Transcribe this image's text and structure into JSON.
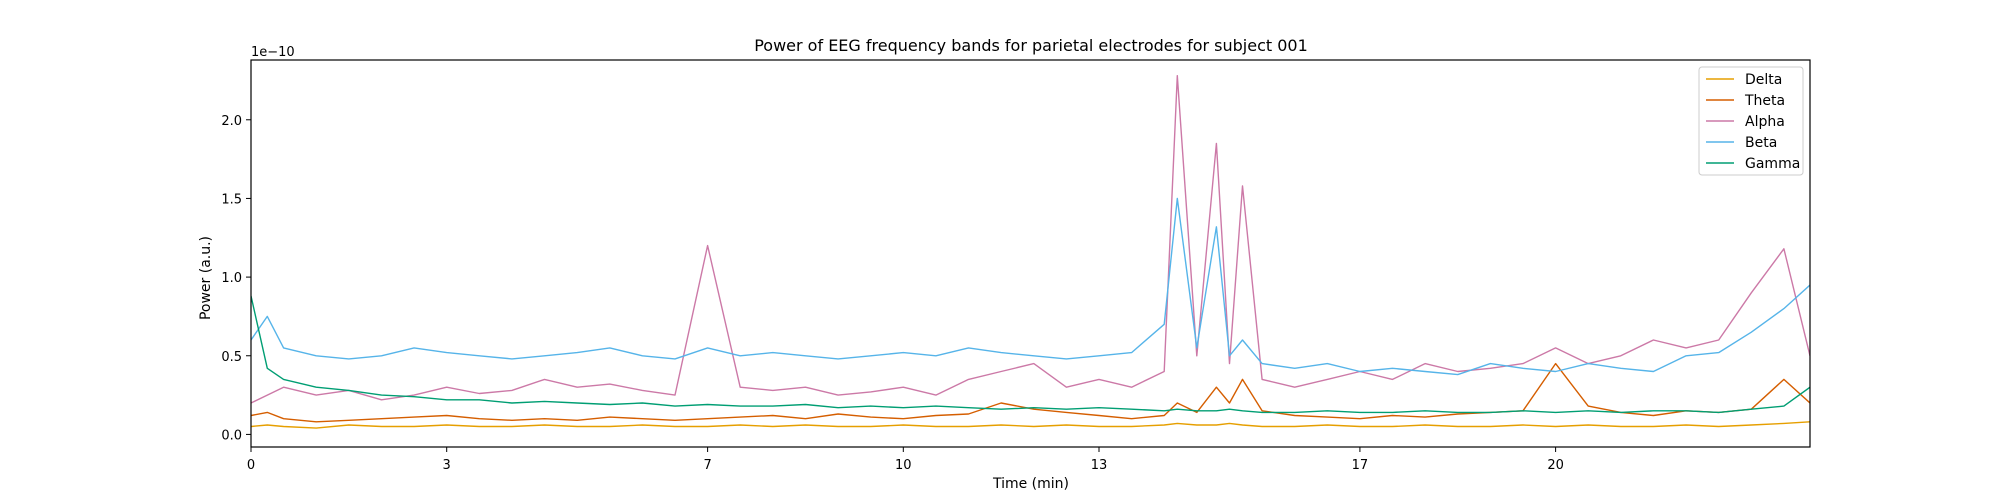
{
  "chart_data": {
    "type": "line",
    "title": "Power of EEG frequency bands for parietal electrodes for subject 001",
    "xlabel": "Time (min)",
    "ylabel": "Power (a.u.)",
    "y_offset_text": "1e−10",
    "y_scale_factor": 1e-10,
    "xlim": [
      0,
      23.9
    ],
    "ylim": [
      -0.08,
      2.38
    ],
    "xticks": [
      0,
      3,
      7,
      10,
      13,
      17,
      20
    ],
    "xtick_labels": [
      "0",
      "3",
      "7",
      "10",
      "13",
      "17",
      "20"
    ],
    "yticks": [
      0.0,
      0.5,
      1.0,
      1.5,
      2.0
    ],
    "ytick_labels": [
      "0.0",
      "0.5",
      "1.0",
      "1.5",
      "2.0"
    ],
    "grid": false,
    "legend_position": "top-right",
    "x": [
      0,
      0.25,
      0.5,
      1,
      1.5,
      2,
      2.5,
      3,
      3.5,
      4,
      4.5,
      5,
      5.5,
      6,
      6.5,
      7,
      7.5,
      8,
      8.5,
      9,
      9.5,
      10,
      10.5,
      11,
      11.5,
      12,
      12.5,
      13,
      13.5,
      14,
      14.2,
      14.5,
      14.8,
      15,
      15.2,
      15.5,
      16,
      16.5,
      17,
      17.5,
      18,
      18.5,
      19,
      19.5,
      20,
      20.5,
      21,
      21.5,
      22,
      22.5,
      23,
      23.5,
      23.9
    ],
    "series": [
      {
        "name": "Delta",
        "color": "#e69f00",
        "values": [
          0.05,
          0.06,
          0.05,
          0.04,
          0.06,
          0.05,
          0.05,
          0.06,
          0.05,
          0.05,
          0.06,
          0.05,
          0.05,
          0.06,
          0.05,
          0.05,
          0.06,
          0.05,
          0.06,
          0.05,
          0.05,
          0.06,
          0.05,
          0.05,
          0.06,
          0.05,
          0.06,
          0.05,
          0.05,
          0.06,
          0.07,
          0.06,
          0.06,
          0.07,
          0.06,
          0.05,
          0.05,
          0.06,
          0.05,
          0.05,
          0.06,
          0.05,
          0.05,
          0.06,
          0.05,
          0.06,
          0.05,
          0.05,
          0.06,
          0.05,
          0.06,
          0.07,
          0.08
        ]
      },
      {
        "name": "Theta",
        "color": "#d55e00",
        "values": [
          0.12,
          0.14,
          0.1,
          0.08,
          0.09,
          0.1,
          0.11,
          0.12,
          0.1,
          0.09,
          0.1,
          0.09,
          0.11,
          0.1,
          0.09,
          0.1,
          0.11,
          0.12,
          0.1,
          0.13,
          0.11,
          0.1,
          0.12,
          0.13,
          0.2,
          0.16,
          0.14,
          0.12,
          0.1,
          0.12,
          0.2,
          0.14,
          0.3,
          0.2,
          0.35,
          0.15,
          0.12,
          0.11,
          0.1,
          0.12,
          0.11,
          0.13,
          0.14,
          0.15,
          0.45,
          0.18,
          0.14,
          0.12,
          0.15,
          0.14,
          0.16,
          0.35,
          0.2
        ]
      },
      {
        "name": "Alpha",
        "color": "#cc79a7",
        "values": [
          0.2,
          0.25,
          0.3,
          0.25,
          0.28,
          0.22,
          0.25,
          0.3,
          0.26,
          0.28,
          0.35,
          0.3,
          0.32,
          0.28,
          0.25,
          1.2,
          0.3,
          0.28,
          0.3,
          0.25,
          0.27,
          0.3,
          0.25,
          0.35,
          0.4,
          0.45,
          0.3,
          0.35,
          0.3,
          0.4,
          2.28,
          0.5,
          1.85,
          0.45,
          1.58,
          0.35,
          0.3,
          0.35,
          0.4,
          0.35,
          0.45,
          0.4,
          0.42,
          0.45,
          0.55,
          0.45,
          0.5,
          0.6,
          0.55,
          0.6,
          0.9,
          1.18,
          0.5
        ]
      },
      {
        "name": "Beta",
        "color": "#56b4e9",
        "values": [
          0.6,
          0.75,
          0.55,
          0.5,
          0.48,
          0.5,
          0.55,
          0.52,
          0.5,
          0.48,
          0.5,
          0.52,
          0.55,
          0.5,
          0.48,
          0.55,
          0.5,
          0.52,
          0.5,
          0.48,
          0.5,
          0.52,
          0.5,
          0.55,
          0.52,
          0.5,
          0.48,
          0.5,
          0.52,
          0.7,
          1.5,
          0.55,
          1.32,
          0.5,
          0.6,
          0.45,
          0.42,
          0.45,
          0.4,
          0.42,
          0.4,
          0.38,
          0.45,
          0.42,
          0.4,
          0.45,
          0.42,
          0.4,
          0.5,
          0.52,
          0.65,
          0.8,
          0.95
        ]
      },
      {
        "name": "Gamma",
        "color": "#009e73",
        "values": [
          0.88,
          0.42,
          0.35,
          0.3,
          0.28,
          0.25,
          0.24,
          0.22,
          0.22,
          0.2,
          0.21,
          0.2,
          0.19,
          0.2,
          0.18,
          0.19,
          0.18,
          0.18,
          0.19,
          0.17,
          0.18,
          0.17,
          0.18,
          0.17,
          0.16,
          0.17,
          0.16,
          0.17,
          0.16,
          0.15,
          0.16,
          0.15,
          0.15,
          0.16,
          0.15,
          0.14,
          0.14,
          0.15,
          0.14,
          0.14,
          0.15,
          0.14,
          0.14,
          0.15,
          0.14,
          0.15,
          0.14,
          0.15,
          0.15,
          0.14,
          0.16,
          0.18,
          0.3
        ]
      }
    ]
  }
}
